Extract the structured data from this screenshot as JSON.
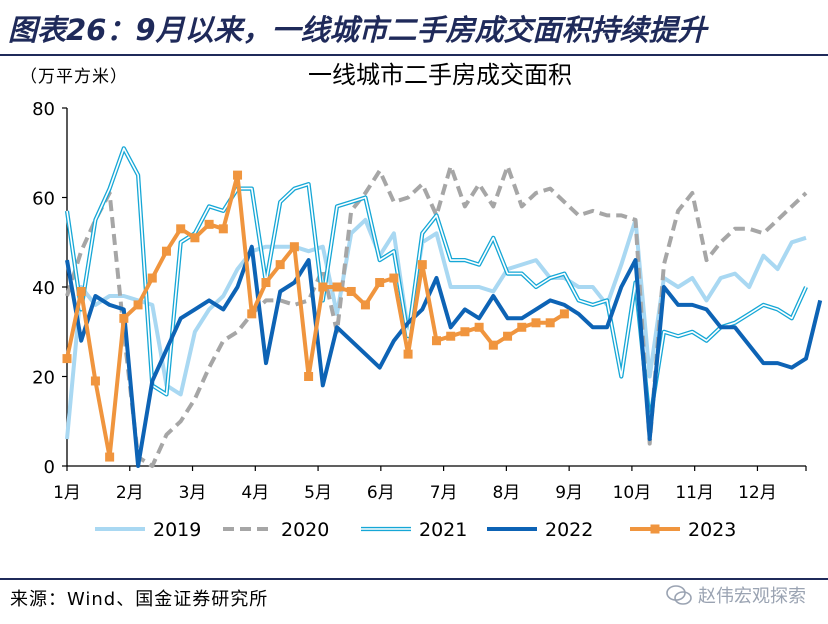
{
  "figure": {
    "title": "图表26：9月以来，一线城市二手房成交面积持续提升",
    "unit": "（万平方米）",
    "source": "来源：Wind、国金证券研究所",
    "watermark": "赵伟宏观探索"
  },
  "chart_data": {
    "type": "line",
    "title": "一线城市二手房成交面积",
    "ylabel": "（万平方米）",
    "ylim": [
      0,
      80
    ],
    "yticks": [
      0,
      20,
      40,
      60,
      80
    ],
    "x_tick_labels": [
      "1月",
      "2月",
      "3月",
      "4月",
      "5月",
      "6月",
      "7月",
      "8月",
      "9月",
      "10月",
      "11月",
      "12月"
    ],
    "x_unit": "week of year",
    "xlim": [
      1,
      53
    ],
    "grid": false,
    "legend_position": "bottom",
    "series": [
      {
        "name": "2019",
        "color": "#a9d8f2",
        "style": "solid",
        "marker": "none",
        "width": 4,
        "values": [
          6,
          40,
          36,
          38,
          38,
          37,
          36,
          18,
          16,
          30,
          35,
          38,
          44,
          48,
          49,
          49,
          49,
          48,
          49,
          34,
          52,
          55,
          47,
          52,
          30,
          50,
          52,
          40,
          40,
          40,
          39,
          44,
          45,
          46,
          42,
          42,
          40,
          40,
          36,
          45,
          55,
          20,
          42,
          40,
          42,
          37,
          42,
          43,
          40,
          47,
          44,
          50,
          51
        ]
      },
      {
        "name": "2020",
        "color": "#a6a6a6",
        "style": "dashed",
        "marker": "none",
        "width": 4,
        "values": [
          38,
          48,
          55,
          61,
          30,
          2,
          0,
          7,
          10,
          15,
          22,
          28,
          30,
          34,
          37,
          37,
          36,
          37,
          44,
          30,
          57,
          61,
          66,
          59,
          60,
          63,
          56,
          67,
          58,
          63,
          58,
          67,
          58,
          61,
          62,
          59,
          56,
          57,
          56,
          56,
          55,
          5,
          45,
          57,
          61,
          46,
          50,
          53,
          53,
          52,
          55,
          58,
          61
        ]
      },
      {
        "name": "2021",
        "color": "#16a7d6",
        "style": "double",
        "marker": "none",
        "width": 4,
        "values": [
          57,
          35,
          55,
          62,
          71,
          65,
          18,
          16,
          50,
          52,
          58,
          57,
          62,
          62,
          41,
          59,
          62,
          63,
          37,
          58,
          59,
          60,
          46,
          48,
          29,
          52,
          56,
          46,
          46,
          45,
          51,
          43,
          43,
          40,
          42,
          43,
          37,
          36,
          37,
          20,
          41,
          10,
          30,
          29,
          30,
          28,
          31,
          32,
          34,
          36,
          35,
          33,
          40
        ]
      },
      {
        "name": "2022",
        "color": "#0d63b5",
        "style": "solid",
        "marker": "none",
        "width": 4,
        "values": [
          46,
          28,
          38,
          36,
          35,
          0,
          19,
          26,
          33,
          35,
          37,
          35,
          40,
          49,
          23,
          39,
          41,
          46,
          18,
          31,
          28,
          25,
          22,
          28,
          32,
          35,
          42,
          31,
          35,
          33,
          38,
          33,
          33,
          35,
          37,
          36,
          34,
          31,
          31,
          40,
          46,
          6,
          40,
          36,
          36,
          35,
          31,
          31,
          27,
          23,
          23,
          22,
          24,
          37
        ]
      },
      {
        "name": "2023",
        "color": "#f0953e",
        "style": "solid",
        "marker": "square",
        "width": 4,
        "values": [
          24,
          39,
          19,
          2,
          33,
          36,
          42,
          48,
          53,
          51,
          54,
          53,
          65,
          34,
          41,
          45,
          49,
          20,
          40,
          40,
          39,
          36,
          41,
          42,
          25,
          45,
          28,
          29,
          30,
          31,
          27,
          29,
          31,
          32,
          32,
          34
        ]
      }
    ]
  }
}
